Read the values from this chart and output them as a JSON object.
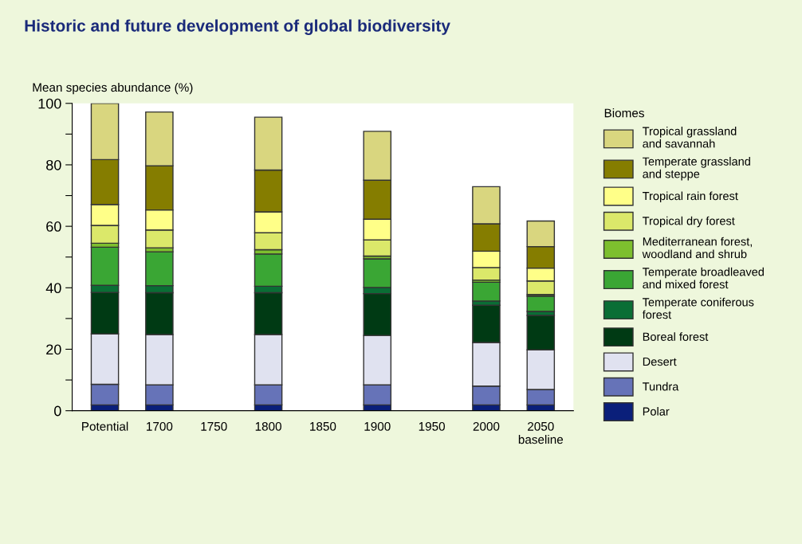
{
  "chart_data": {
    "type": "bar",
    "stacked": true,
    "title": "Historic and future development of global biodiversity",
    "ylabel": "Mean species abundance (%)",
    "legend_title": "Biomes",
    "categories": [
      "Potential",
      "1700",
      "1750",
      "1800",
      "1850",
      "1900",
      "1950",
      "2000",
      "2050\nbaseline"
    ],
    "series": [
      {
        "name": "Polar",
        "color": "#0a1f7a",
        "values": [
          1.9,
          1.9,
          null,
          1.9,
          null,
          1.9,
          null,
          1.9,
          1.9
        ]
      },
      {
        "name": "Tundra",
        "color": "#6673b8",
        "values": [
          6.7,
          6.5,
          null,
          6.5,
          null,
          6.5,
          null,
          6.1,
          5.0
        ]
      },
      {
        "name": "Desert",
        "color": "#e0e2f0",
        "values": [
          16.4,
          16.4,
          null,
          16.4,
          null,
          16.1,
          null,
          14.2,
          12.9
        ]
      },
      {
        "name": "Boreal forest",
        "color": "#003a14",
        "values": [
          13.5,
          13.6,
          null,
          13.6,
          null,
          13.6,
          null,
          12.1,
          11.2
        ]
      },
      {
        "name": "Temperate coniferous\nforest",
        "color": "#0a6e35",
        "values": [
          2.3,
          2.3,
          null,
          2.1,
          null,
          2.0,
          null,
          1.4,
          1.3
        ]
      },
      {
        "name": "Temperate broadleaved\nand mixed forest",
        "color": "#3aa634",
        "values": [
          12.4,
          11.0,
          null,
          10.5,
          null,
          9.3,
          null,
          6.1,
          5.0
        ]
      },
      {
        "name": "Mediterranean forest,\nwoodland and shrub",
        "color": "#7dbf2e",
        "values": [
          1.3,
          1.3,
          null,
          1.4,
          null,
          0.9,
          null,
          0.7,
          0.5
        ]
      },
      {
        "name": "Tropical dry forest",
        "color": "#dbe86a",
        "values": [
          5.8,
          5.8,
          null,
          5.5,
          null,
          5.3,
          null,
          4.1,
          4.4
        ]
      },
      {
        "name": "Tropical rain forest",
        "color": "#ffff88",
        "values": [
          6.8,
          6.5,
          null,
          6.8,
          null,
          6.7,
          null,
          5.3,
          4.2
        ]
      },
      {
        "name": "Temperate grassland\nand steppe",
        "color": "#857d00",
        "values": [
          14.6,
          14.4,
          null,
          13.6,
          null,
          12.7,
          null,
          8.9,
          7.0
        ]
      },
      {
        "name": "Tropical grassland\nand savannah",
        "color": "#d9d67f",
        "values": [
          18.3,
          17.5,
          null,
          17.2,
          null,
          15.9,
          null,
          12.1,
          8.3
        ]
      }
    ],
    "ylim": [
      0,
      100
    ],
    "yticks": [
      0,
      {
        "value": 10,
        "label": null
      },
      20,
      {
        "value": 30,
        "label": null
      },
      40,
      {
        "value": 50,
        "label": null
      },
      60,
      {
        "value": 70,
        "label": null
      },
      80,
      {
        "value": 90,
        "label": null
      },
      100
    ],
    "legend": "right"
  }
}
